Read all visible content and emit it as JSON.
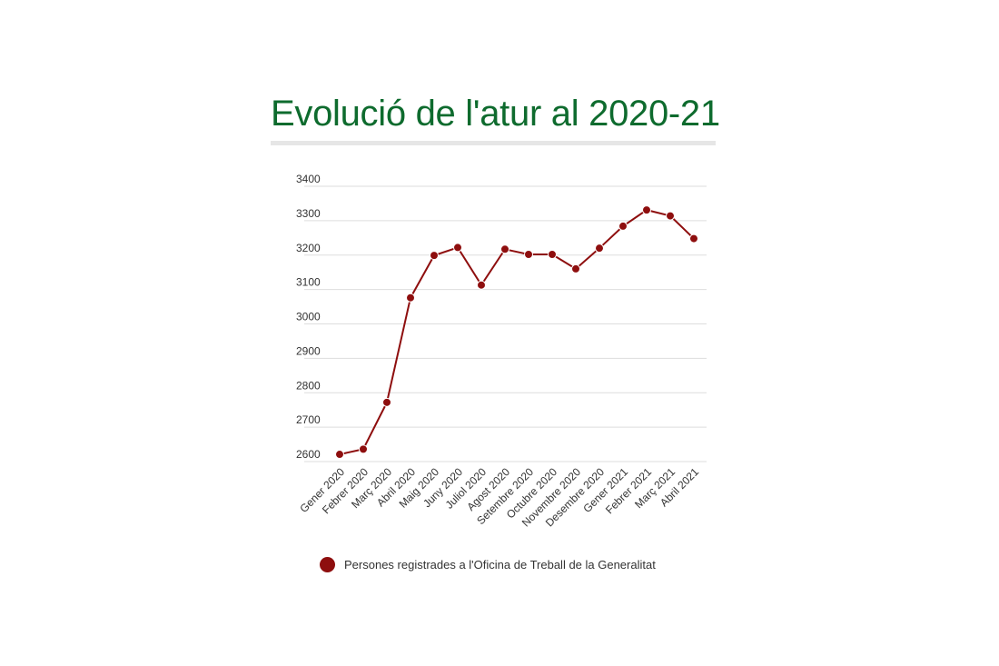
{
  "title": "Evolució de l'atur al 2020-21",
  "colors": {
    "title": "#0e6b2e",
    "series": "#8e0e0e",
    "grid": "#dddddd",
    "rule": "#e6e6e6"
  },
  "chart_data": {
    "type": "line",
    "title": "Evolució de l'atur al 2020-21",
    "categories": [
      "Gener 2020",
      "Febrer 2020",
      "Març 2020",
      "Abril 2020",
      "Maig 2020",
      "Juny 2020",
      "Juliol 2020",
      "Agost 2020",
      "Setembre 2020",
      "Octubre 2020",
      "Novembre 2020",
      "Desembre 2020",
      "Gener 2021",
      "Febrer 2021",
      "Març 2021",
      "Abril 2021"
    ],
    "series": [
      {
        "name": "Persones registrades a l'Oficina de Treball de la Generalitat",
        "values": [
          2621,
          2636,
          2772,
          3076,
          3199,
          3222,
          3113,
          3217,
          3202,
          3202,
          3160,
          3220,
          3284,
          3331,
          3314,
          3248
        ]
      }
    ],
    "ylim": [
      2600,
      3400
    ],
    "yticks": [
      2600,
      2700,
      2800,
      2900,
      3000,
      3100,
      3200,
      3300,
      3400
    ],
    "grid": true,
    "legend": "bottom"
  }
}
